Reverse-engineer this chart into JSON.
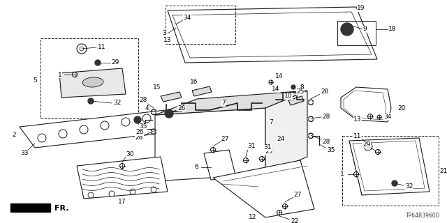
{
  "bg_color": "#ffffff",
  "line_color": "#1a1a1a",
  "diagram_code": "TP64B3960D",
  "fig_w": 6.4,
  "fig_h": 3.2,
  "dpi": 100
}
